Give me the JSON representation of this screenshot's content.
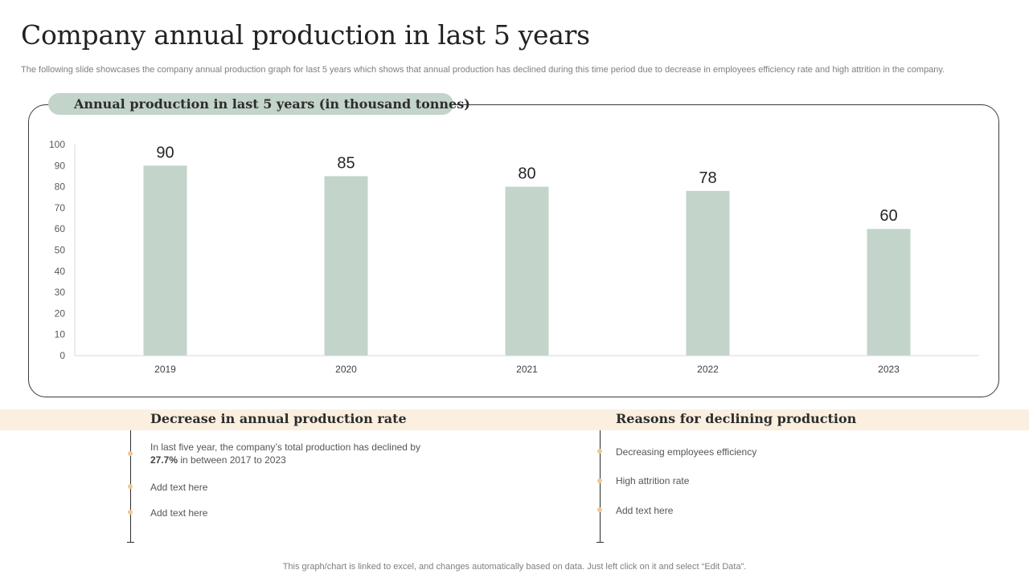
{
  "title": "Company annual production in last 5 years",
  "subtitle": "The following slide showcases the company annual production graph for last 5 years which shows that annual production has declined during this time period due to decrease in employees efficiency rate and high attrition in the company.",
  "chart_data": {
    "type": "bar",
    "title": "Annual production in last 5 years (in thousand tonnes)",
    "categories": [
      "2019",
      "2020",
      "2021",
      "2022",
      "2023"
    ],
    "values": [
      90,
      85,
      80,
      78,
      60
    ],
    "ylim": [
      0,
      100
    ],
    "yticks": [
      0,
      10,
      20,
      30,
      40,
      50,
      60,
      70,
      80,
      90,
      100
    ],
    "grid": false,
    "data_labels": true,
    "bar_color": "#c3d4ca"
  },
  "left_section": {
    "title": "Decrease in annual production rate",
    "items": [
      {
        "text_pre": "In last five year, the company’s total production has declined by ",
        "highlight": "27.7%",
        "text_post": " in between 2017 to 2023"
      },
      {
        "text": "Add text here"
      },
      {
        "text": "Add text here"
      }
    ]
  },
  "right_section": {
    "title": "Reasons for declining production",
    "items": [
      {
        "text": "Decreasing employees efficiency"
      },
      {
        "text": "High attrition rate"
      },
      {
        "text": "Add text here"
      }
    ]
  },
  "footer": "This graph/chart is linked to excel,  and changes automatically based on data. Just left click on it and select “Edit Data”.",
  "colors": {
    "bar": "#c3d4ca",
    "pill": "#c3d4ca",
    "band": "#fbefe0",
    "dot": "#f0c894"
  }
}
